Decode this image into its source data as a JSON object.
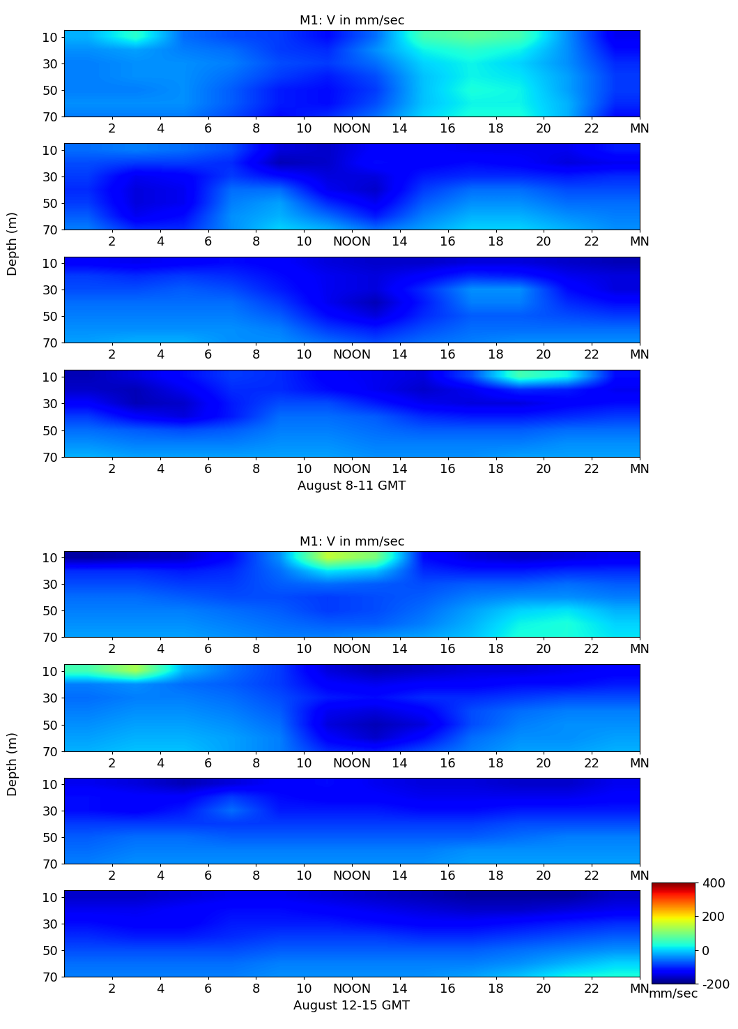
{
  "chart_data": [
    {
      "type": "heatmap",
      "title": "M1: V in mm/sec",
      "xlabel": "August 8-11 GMT",
      "ylabel": "Depth (m)",
      "color": "jet",
      "xlim": [
        0,
        24
      ],
      "xticks": [
        2,
        4,
        6,
        8,
        10,
        {
          "value": 12,
          "label": "NOON"
        },
        14,
        16,
        18,
        20,
        22,
        {
          "value": 24,
          "label": "MN"
        }
      ],
      "ylim": [
        70,
        5
      ],
      "yticks": [
        10,
        30,
        50,
        70
      ],
      "x": [
        1,
        3,
        5,
        7,
        9,
        11,
        13,
        15,
        17,
        19,
        21,
        23
      ],
      "y": [
        10,
        20,
        30,
        40,
        50,
        60,
        70
      ],
      "panels": [
        [
          [
            -20,
            40,
            -60,
            -80,
            -90,
            -120,
            -60,
            60,
            80,
            60,
            -40,
            -140
          ],
          [
            -40,
            -30,
            -50,
            -60,
            -90,
            -100,
            -40,
            20,
            40,
            20,
            -40,
            -120
          ],
          [
            -50,
            -40,
            -40,
            -50,
            -80,
            -90,
            -60,
            0,
            20,
            0,
            -40,
            -100
          ],
          [
            -50,
            -40,
            -40,
            -60,
            -90,
            -110,
            -80,
            -10,
            20,
            10,
            -30,
            -90
          ],
          [
            -50,
            -50,
            -40,
            -70,
            -110,
            -120,
            -90,
            -10,
            30,
            20,
            -30,
            -90
          ],
          [
            -40,
            -40,
            -40,
            -70,
            -110,
            -120,
            -80,
            -10,
            20,
            20,
            -20,
            -100
          ],
          [
            -50,
            -50,
            -50,
            -80,
            -120,
            -100,
            -60,
            0,
            30,
            30,
            -20,
            -120
          ]
        ],
        [
          [
            -60,
            -50,
            -60,
            -80,
            -150,
            -160,
            -130,
            -130,
            -140,
            -140,
            -140,
            -110
          ],
          [
            -80,
            -90,
            -90,
            -100,
            -170,
            -160,
            -120,
            -130,
            -120,
            -130,
            -150,
            -140
          ],
          [
            -90,
            -140,
            -130,
            -90,
            -120,
            -150,
            -150,
            -110,
            -100,
            -100,
            -110,
            -100
          ],
          [
            -100,
            -150,
            -140,
            -60,
            -60,
            -140,
            -160,
            -90,
            -60,
            -60,
            -80,
            -80
          ],
          [
            -90,
            -150,
            -140,
            -50,
            -30,
            -100,
            -140,
            -70,
            -40,
            -40,
            -60,
            -60
          ],
          [
            -70,
            -140,
            -120,
            -40,
            -20,
            -60,
            -110,
            -50,
            -20,
            -20,
            -40,
            -50
          ],
          [
            -50,
            -100,
            -100,
            -40,
            0,
            -20,
            -60,
            -30,
            0,
            0,
            -20,
            -40
          ]
        ],
        [
          [
            -130,
            -140,
            -130,
            -120,
            -130,
            -150,
            -160,
            -160,
            -150,
            -150,
            -160,
            -170
          ],
          [
            -90,
            -100,
            -90,
            -100,
            -120,
            -140,
            -150,
            -130,
            -100,
            -110,
            -140,
            -150
          ],
          [
            -80,
            -80,
            -70,
            -80,
            -110,
            -140,
            -150,
            -100,
            -40,
            -40,
            -120,
            -150
          ],
          [
            -60,
            -60,
            -60,
            -60,
            -90,
            -140,
            -170,
            -110,
            -50,
            -50,
            -100,
            -120
          ],
          [
            -50,
            -50,
            -50,
            -50,
            -70,
            -120,
            -150,
            -100,
            -70,
            -70,
            -80,
            -90
          ],
          [
            -40,
            -40,
            -40,
            -40,
            -50,
            -90,
            -110,
            -80,
            -60,
            -60,
            -60,
            -60
          ],
          [
            -30,
            -20,
            -20,
            -40,
            -40,
            -60,
            -80,
            -60,
            -50,
            -40,
            -40,
            -40
          ]
        ],
        [
          [
            -170,
            -150,
            -120,
            -90,
            -100,
            -130,
            -140,
            -150,
            -80,
            60,
            20,
            -120
          ],
          [
            -160,
            -170,
            -140,
            -100,
            -100,
            -120,
            -140,
            -160,
            -140,
            -100,
            -110,
            -140
          ],
          [
            -130,
            -170,
            -160,
            -110,
            -80,
            -80,
            -110,
            -140,
            -150,
            -150,
            -130,
            -120
          ],
          [
            -90,
            -130,
            -150,
            -110,
            -60,
            -60,
            -70,
            -100,
            -110,
            -110,
            -100,
            -90
          ],
          [
            -60,
            -70,
            -80,
            -70,
            -50,
            -50,
            -60,
            -70,
            -70,
            -70,
            -60,
            -60
          ],
          [
            -40,
            -50,
            -50,
            -50,
            -40,
            -40,
            -50,
            -50,
            -50,
            -50,
            -40,
            -40
          ],
          [
            -20,
            -30,
            -30,
            -30,
            -30,
            -30,
            -40,
            -40,
            -40,
            -30,
            -30,
            -30
          ]
        ]
      ]
    },
    {
      "type": "heatmap",
      "title": "M1: V in mm/sec",
      "xlabel": "August 12-15 GMT",
      "ylabel": "Depth (m)",
      "color": "jet",
      "xlim": [
        0,
        24
      ],
      "xticks": [
        2,
        4,
        6,
        8,
        10,
        {
          "value": 12,
          "label": "NOON"
        },
        14,
        16,
        18,
        20,
        22,
        {
          "value": 24,
          "label": "MN"
        }
      ],
      "ylim": [
        70,
        5
      ],
      "yticks": [
        10,
        30,
        50,
        70
      ],
      "x": [
        1,
        3,
        5,
        7,
        9,
        11,
        13,
        15,
        17,
        19,
        21,
        23
      ],
      "y": [
        10,
        20,
        30,
        40,
        50,
        60,
        70
      ],
      "colorbar": {
        "range": [
          -200,
          400
        ],
        "ticks": [
          -200,
          0,
          200,
          400
        ],
        "label": "mm/sec"
      },
      "panels": [
        [
          [
            -180,
            -170,
            -160,
            -120,
            -40,
            150,
            100,
            -120,
            -150,
            -160,
            -150,
            -140
          ],
          [
            -100,
            -100,
            -110,
            -100,
            -60,
            10,
            -10,
            -100,
            -110,
            -110,
            -100,
            -100
          ],
          [
            -80,
            -80,
            -90,
            -90,
            -70,
            -60,
            -70,
            -80,
            -70,
            -70,
            -60,
            -70
          ],
          [
            -60,
            -60,
            -70,
            -80,
            -80,
            -90,
            -80,
            -70,
            -50,
            -40,
            -40,
            -50
          ],
          [
            -50,
            -50,
            -50,
            -60,
            -70,
            -90,
            -80,
            -60,
            -30,
            0,
            10,
            -20
          ],
          [
            -40,
            -40,
            -40,
            -50,
            -60,
            -70,
            -70,
            -50,
            -20,
            20,
            30,
            0
          ],
          [
            -30,
            -30,
            -30,
            -40,
            -50,
            -50,
            -40,
            -30,
            -10,
            30,
            30,
            10
          ]
        ],
        [
          [
            60,
            130,
            -20,
            -60,
            -90,
            -150,
            -170,
            -160,
            -150,
            -150,
            -140,
            -130
          ],
          [
            -50,
            -40,
            -60,
            -70,
            -90,
            -130,
            -140,
            -130,
            -130,
            -120,
            -120,
            -110
          ],
          [
            -60,
            -50,
            -50,
            -60,
            -80,
            -110,
            -120,
            -100,
            -100,
            -90,
            -80,
            -80
          ],
          [
            -50,
            -40,
            -40,
            -50,
            -70,
            -140,
            -150,
            -130,
            -80,
            -60,
            -50,
            -50
          ],
          [
            -40,
            -30,
            -30,
            -40,
            -60,
            -150,
            -170,
            -150,
            -80,
            -50,
            -40,
            -40
          ],
          [
            -30,
            -20,
            -20,
            -30,
            -50,
            -130,
            -160,
            -120,
            -60,
            -40,
            -40,
            -30
          ],
          [
            -20,
            -10,
            -10,
            -30,
            -50,
            -100,
            -110,
            -80,
            -50,
            -30,
            -30,
            -20
          ]
        ],
        [
          [
            -140,
            -150,
            -170,
            -150,
            -130,
            -120,
            -140,
            -150,
            -150,
            -160,
            -160,
            -140
          ],
          [
            -120,
            -130,
            -130,
            -90,
            -120,
            -130,
            -130,
            -140,
            -140,
            -140,
            -140,
            -130
          ],
          [
            -120,
            -130,
            -110,
            -60,
            -110,
            -110,
            -110,
            -120,
            -120,
            -110,
            -110,
            -110
          ],
          [
            -90,
            -90,
            -90,
            -90,
            -90,
            -90,
            -90,
            -90,
            -90,
            -80,
            -80,
            -80
          ],
          [
            -70,
            -60,
            -60,
            -70,
            -70,
            -70,
            -70,
            -70,
            -70,
            -60,
            -50,
            -50
          ],
          [
            -60,
            -50,
            -50,
            -50,
            -50,
            -50,
            -50,
            -50,
            -40,
            -40,
            -40,
            -40
          ],
          [
            -50,
            -40,
            -40,
            -40,
            -40,
            -40,
            -40,
            -40,
            -30,
            -30,
            -30,
            -30
          ]
        ],
        [
          [
            -160,
            -160,
            -150,
            -140,
            -140,
            -150,
            -160,
            -170,
            -180,
            -180,
            -180,
            -160
          ],
          [
            -140,
            -140,
            -130,
            -120,
            -120,
            -130,
            -140,
            -150,
            -160,
            -160,
            -150,
            -140
          ],
          [
            -120,
            -130,
            -130,
            -110,
            -110,
            -110,
            -120,
            -130,
            -130,
            -120,
            -110,
            -100
          ],
          [
            -100,
            -110,
            -110,
            -100,
            -90,
            -90,
            -90,
            -100,
            -100,
            -90,
            -80,
            -70
          ],
          [
            -80,
            -80,
            -80,
            -80,
            -70,
            -70,
            -70,
            -70,
            -70,
            -60,
            -50,
            -40
          ],
          [
            -60,
            -60,
            -60,
            -60,
            -50,
            -50,
            -50,
            -50,
            -50,
            -40,
            -20,
            0
          ],
          [
            -50,
            -50,
            -50,
            -50,
            -40,
            -40,
            -40,
            -40,
            -30,
            -10,
            20,
            30
          ]
        ]
      ]
    }
  ]
}
